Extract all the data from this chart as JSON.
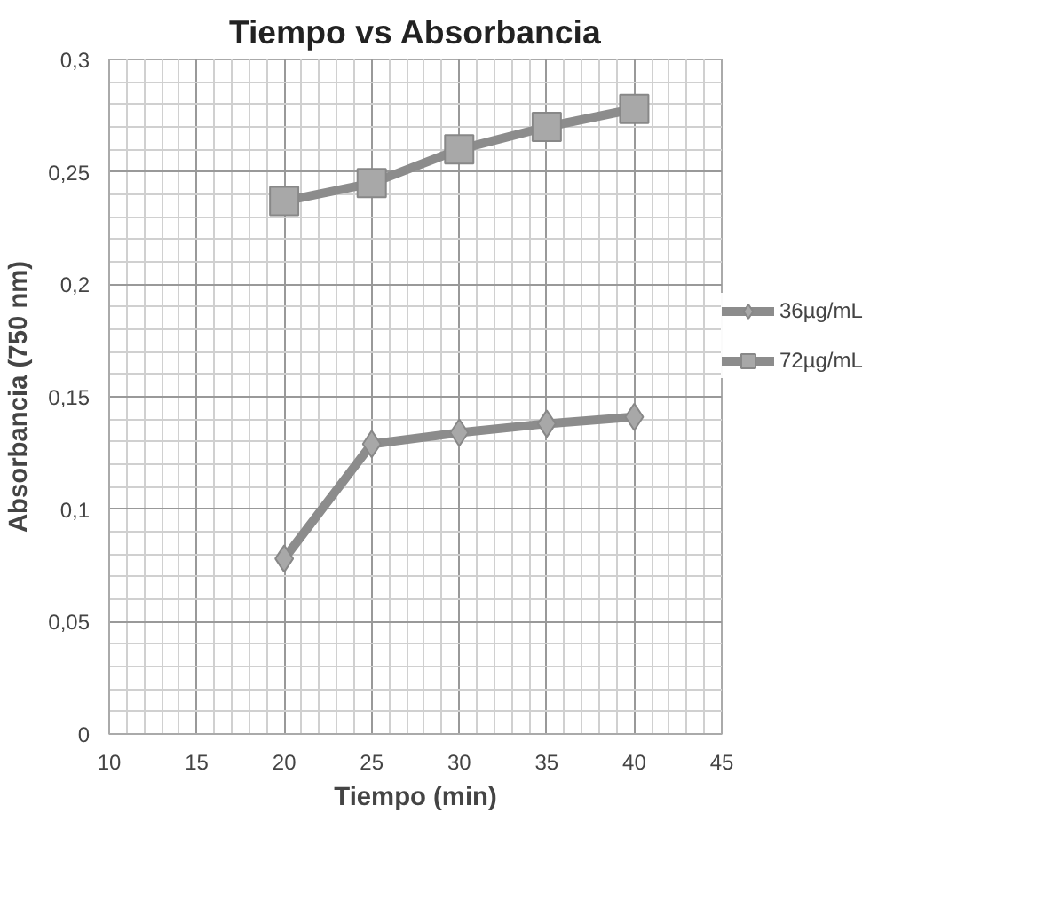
{
  "chart_data": {
    "type": "line",
    "title": "Tiempo vs Absorbancia",
    "xlabel": "Tiempo (min)",
    "ylabel": "Absorbancia (750 nm)",
    "x": [
      20,
      25,
      30,
      35,
      40
    ],
    "series": [
      {
        "name": "36µg/mL",
        "color": "#8c8c8c",
        "marker": "diamond",
        "values": [
          0.078,
          0.129,
          0.134,
          0.138,
          0.141
        ]
      },
      {
        "name": "72µg/mL",
        "color": "#8c8c8c",
        "marker": "square",
        "values": [
          0.237,
          0.245,
          0.26,
          0.27,
          0.278
        ]
      }
    ],
    "xlim": [
      10,
      45
    ],
    "xticks": [
      10,
      15,
      20,
      25,
      30,
      35,
      40,
      45
    ],
    "ylim": [
      0,
      0.3
    ],
    "yticks": [
      0,
      {
        "value": 0.05,
        "label": "0,05"
      },
      {
        "value": 0.1,
        "label": "0,1"
      },
      {
        "value": 0.15,
        "label": "0,15"
      },
      {
        "value": 0.2,
        "label": "0,2"
      },
      {
        "value": 0.25,
        "label": "0,25"
      },
      {
        "value": 0.3,
        "label": "0,3"
      }
    ],
    "grid": true,
    "legend": "right",
    "line_style": "solid"
  }
}
